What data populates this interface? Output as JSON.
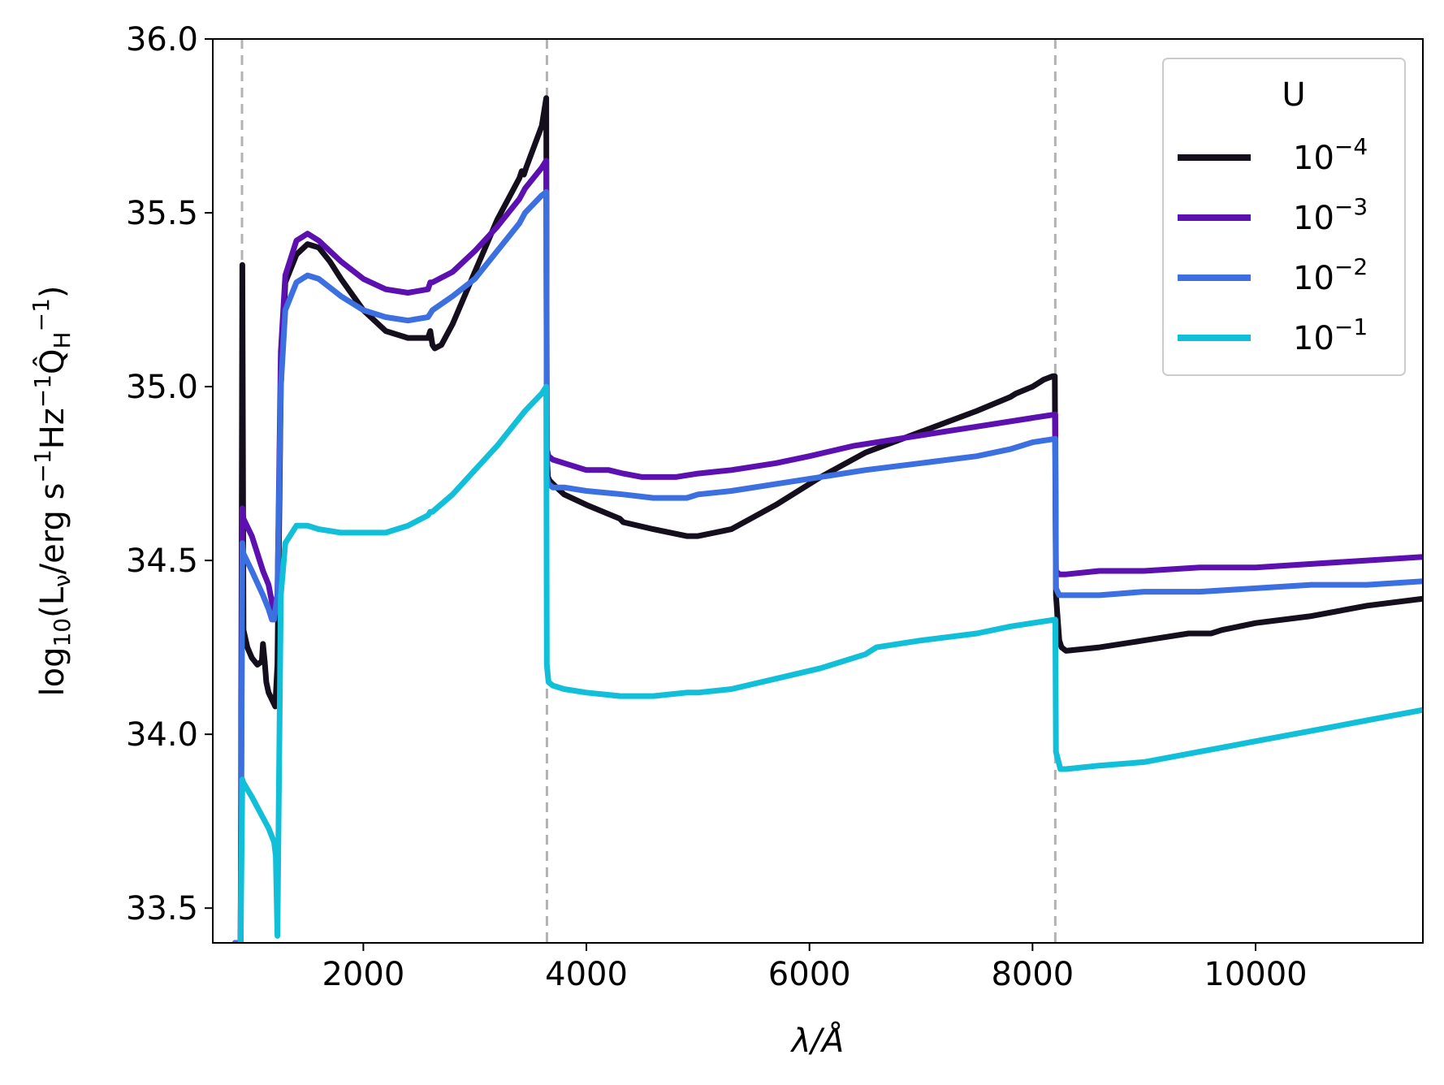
{
  "chart_data": {
    "type": "line",
    "xlabel": "λ/Å",
    "ylabel": {
      "text": "log",
      "sub10": "10",
      "open": "(L",
      "nu": "ν",
      "body": "/erg s",
      "exp1": "−1",
      "hz": "Hz",
      "exp2": "−1",
      "q": "Q̂",
      "qsub": "H",
      "exp3": "−1",
      "close": ")"
    },
    "xlim": [
      650,
      11500
    ],
    "ylim": [
      33.4,
      36.0
    ],
    "xticks": [
      2000,
      4000,
      6000,
      8000,
      10000
    ],
    "xtick_labels": [
      "2000",
      "4000",
      "6000",
      "8000",
      "10000"
    ],
    "yticks": [
      33.5,
      34.0,
      34.5,
      35.0,
      35.5,
      36.0
    ],
    "ytick_labels": [
      "33.5",
      "34.0",
      "34.5",
      "35.0",
      "35.5",
      "36.0"
    ],
    "vlines": [
      912,
      3646,
      8204
    ],
    "vline_color": "#b3b3b3",
    "grid": false,
    "legend": {
      "title": "U",
      "placement": "top-right"
    },
    "series": [
      {
        "name": "10^-4",
        "base": "10",
        "exp": "−4",
        "color": "#150e1d",
        "x": [
          850,
          900,
          915,
          925,
          960,
          1000,
          1050,
          1090,
          1100,
          1115,
          1130,
          1150,
          1180,
          1210,
          1230,
          1260,
          1300,
          1400,
          1500,
          1600,
          1700,
          1800,
          2000,
          2200,
          2400,
          2580,
          2600,
          2620,
          2640,
          2700,
          2800,
          3000,
          3200,
          3400,
          3420,
          3440,
          3460,
          3600,
          3640,
          3645,
          3655,
          3670,
          3700,
          3800,
          4000,
          4300,
          4330,
          4600,
          4900,
          5000,
          5300,
          5700,
          6100,
          6500,
          7000,
          7500,
          7800,
          7850,
          8000,
          8100,
          8180,
          8200,
          8210,
          8240,
          8260,
          8300,
          8600,
          9000,
          9400,
          9600,
          9700,
          10000,
          10500,
          11000,
          11500
        ],
        "y": [
          33.4,
          33.4,
          35.35,
          34.3,
          34.25,
          34.22,
          34.2,
          34.21,
          34.26,
          34.21,
          34.15,
          34.12,
          34.1,
          34.08,
          34.2,
          35.0,
          35.3,
          35.38,
          35.41,
          35.4,
          35.36,
          35.31,
          35.22,
          35.16,
          35.14,
          35.14,
          35.16,
          35.12,
          35.11,
          35.12,
          35.18,
          35.33,
          35.48,
          35.6,
          35.62,
          35.61,
          35.63,
          35.75,
          35.83,
          34.8,
          34.74,
          34.73,
          34.72,
          34.69,
          34.66,
          34.62,
          34.61,
          34.59,
          34.57,
          34.57,
          34.59,
          34.66,
          34.74,
          34.81,
          34.87,
          34.93,
          34.97,
          34.98,
          35.0,
          35.02,
          35.03,
          35.03,
          34.4,
          34.27,
          34.25,
          34.24,
          34.25,
          34.27,
          34.29,
          34.29,
          34.3,
          34.32,
          34.34,
          34.37,
          34.39
        ]
      },
      {
        "name": "10^-3",
        "base": "10",
        "exp": "−3",
        "color": "#5c10b0",
        "x": [
          850,
          900,
          915,
          925,
          1000,
          1100,
          1150,
          1180,
          1200,
          1230,
          1260,
          1300,
          1400,
          1500,
          1600,
          1800,
          2000,
          2200,
          2400,
          2580,
          2600,
          2620,
          2800,
          3000,
          3200,
          3400,
          3450,
          3600,
          3640,
          3645,
          3660,
          3700,
          3800,
          4000,
          4200,
          4330,
          4500,
          4800,
          5000,
          5300,
          5700,
          6000,
          6400,
          6800,
          7200,
          7600,
          8000,
          8204,
          8210,
          8240,
          8300,
          8600,
          9000,
          9500,
          10000,
          10500,
          11000,
          11500
        ],
        "y": [
          33.4,
          33.4,
          34.65,
          34.62,
          34.57,
          34.47,
          34.43,
          34.38,
          34.36,
          34.4,
          35.1,
          35.32,
          35.42,
          35.44,
          35.42,
          35.36,
          35.31,
          35.28,
          35.27,
          35.28,
          35.3,
          35.3,
          35.33,
          35.39,
          35.46,
          35.54,
          35.57,
          35.63,
          35.65,
          34.82,
          34.8,
          34.79,
          34.78,
          34.76,
          34.76,
          34.75,
          34.74,
          34.74,
          34.75,
          34.76,
          34.78,
          34.8,
          34.83,
          34.85,
          34.87,
          34.89,
          34.91,
          34.92,
          34.47,
          34.46,
          34.46,
          34.47,
          34.47,
          34.48,
          34.48,
          34.49,
          34.5,
          34.51
        ]
      },
      {
        "name": "10^-2",
        "base": "10",
        "exp": "−2",
        "color": "#3c6fe0",
        "x": [
          850,
          900,
          915,
          925,
          1000,
          1100,
          1150,
          1180,
          1200,
          1230,
          1260,
          1300,
          1400,
          1500,
          1600,
          1800,
          2000,
          2200,
          2400,
          2580,
          2600,
          2620,
          2800,
          3000,
          3200,
          3400,
          3450,
          3600,
          3640,
          3645,
          3660,
          3700,
          3800,
          4000,
          4330,
          4600,
          4900,
          5000,
          5300,
          5700,
          6100,
          6500,
          7000,
          7500,
          7800,
          8000,
          8204,
          8210,
          8240,
          8300,
          8600,
          9000,
          9500,
          10000,
          10500,
          11000,
          11500
        ],
        "y": [
          33.4,
          33.4,
          34.55,
          34.52,
          34.47,
          34.4,
          34.36,
          34.33,
          34.33,
          34.4,
          35.0,
          35.22,
          35.3,
          35.32,
          35.31,
          35.26,
          35.22,
          35.2,
          35.19,
          35.2,
          35.21,
          35.22,
          35.26,
          35.31,
          35.39,
          35.47,
          35.5,
          35.55,
          35.56,
          34.74,
          34.72,
          34.71,
          34.71,
          34.7,
          34.69,
          34.68,
          34.68,
          34.69,
          34.7,
          34.72,
          34.74,
          34.76,
          34.78,
          34.8,
          34.82,
          34.84,
          34.85,
          34.42,
          34.4,
          34.4,
          34.4,
          34.41,
          34.41,
          34.42,
          34.43,
          34.43,
          34.44
        ]
      },
      {
        "name": "10^-1",
        "base": "10",
        "exp": "−1",
        "color": "#12bfd8",
        "x": [
          900,
          915,
          925,
          1000,
          1100,
          1150,
          1200,
          1215,
          1230,
          1260,
          1300,
          1400,
          1500,
          1600,
          1800,
          2000,
          2200,
          2400,
          2580,
          2600,
          2620,
          2800,
          3000,
          3200,
          3400,
          3450,
          3600,
          3640,
          3645,
          3660,
          3700,
          3800,
          4000,
          4300,
          4600,
          4900,
          5000,
          5300,
          5700,
          6100,
          6500,
          6600,
          7000,
          7500,
          7800,
          8000,
          8204,
          8210,
          8250,
          8300,
          8600,
          9000,
          9500,
          10000,
          10500,
          11000,
          11500
        ],
        "y": [
          33.4,
          33.87,
          33.86,
          33.82,
          33.76,
          33.73,
          33.69,
          33.65,
          33.42,
          34.4,
          34.55,
          34.6,
          34.6,
          34.59,
          34.58,
          34.58,
          34.58,
          34.6,
          34.63,
          34.64,
          34.64,
          34.69,
          34.76,
          34.83,
          34.91,
          34.93,
          34.98,
          35.0,
          34.2,
          34.15,
          34.14,
          34.13,
          34.12,
          34.11,
          34.11,
          34.12,
          34.12,
          34.13,
          34.16,
          34.19,
          34.23,
          34.25,
          34.27,
          34.29,
          34.31,
          34.32,
          34.33,
          33.95,
          33.9,
          33.9,
          33.91,
          33.92,
          33.95,
          33.98,
          34.01,
          34.04,
          34.07
        ]
      }
    ]
  }
}
